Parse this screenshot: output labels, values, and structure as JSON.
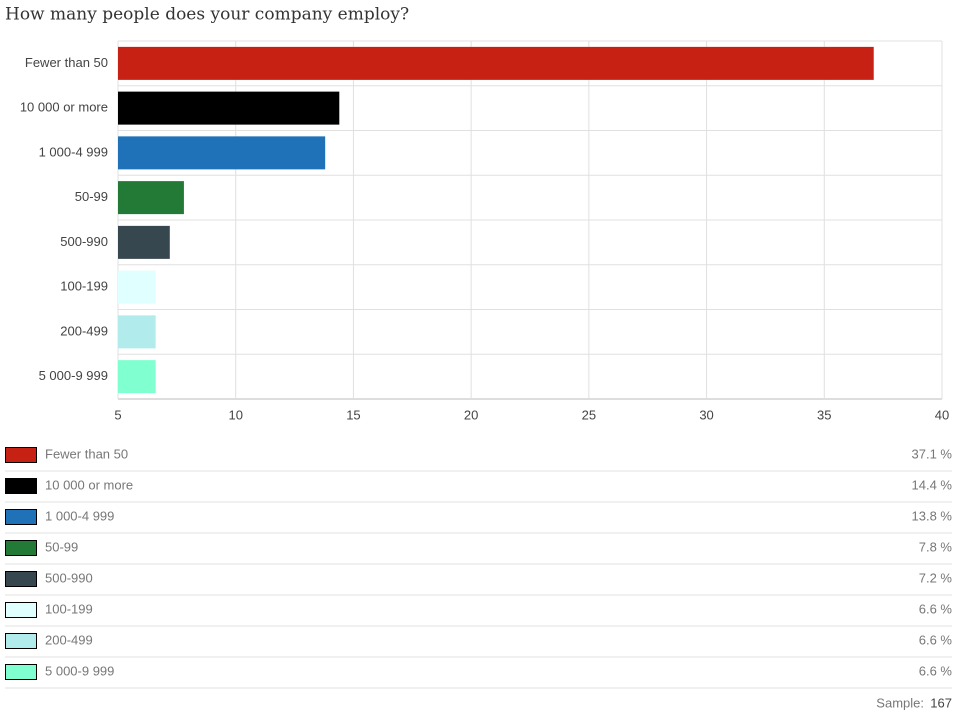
{
  "chart_data": {
    "type": "bar",
    "orientation": "horizontal",
    "title": "How many people does your company employ?",
    "categories": [
      "Fewer than 50",
      "10 000 or more",
      "1 000-4 999",
      "50-99",
      "500-990",
      "100-199",
      "200-499",
      "5 000-9 999"
    ],
    "values": [
      37.1,
      14.4,
      13.8,
      7.8,
      7.2,
      6.6,
      6.6,
      6.6
    ],
    "value_labels": [
      "37.1 %",
      "14.4 %",
      "13.8 %",
      "7.8 %",
      "7.2 %",
      "6.6 %",
      "6.6 %",
      "6.6 %"
    ],
    "colors": [
      "#c62112",
      "#000000",
      "#1f72b8",
      "#237a36",
      "#37474f",
      "#e0ffff",
      "#b2ebeb",
      "#80ffd0"
    ],
    "xlim": [
      5,
      40
    ],
    "xticks": [
      5,
      10,
      15,
      20,
      25,
      30,
      35,
      40
    ],
    "grid": true,
    "sample_label": "Sample:",
    "sample": 167
  }
}
